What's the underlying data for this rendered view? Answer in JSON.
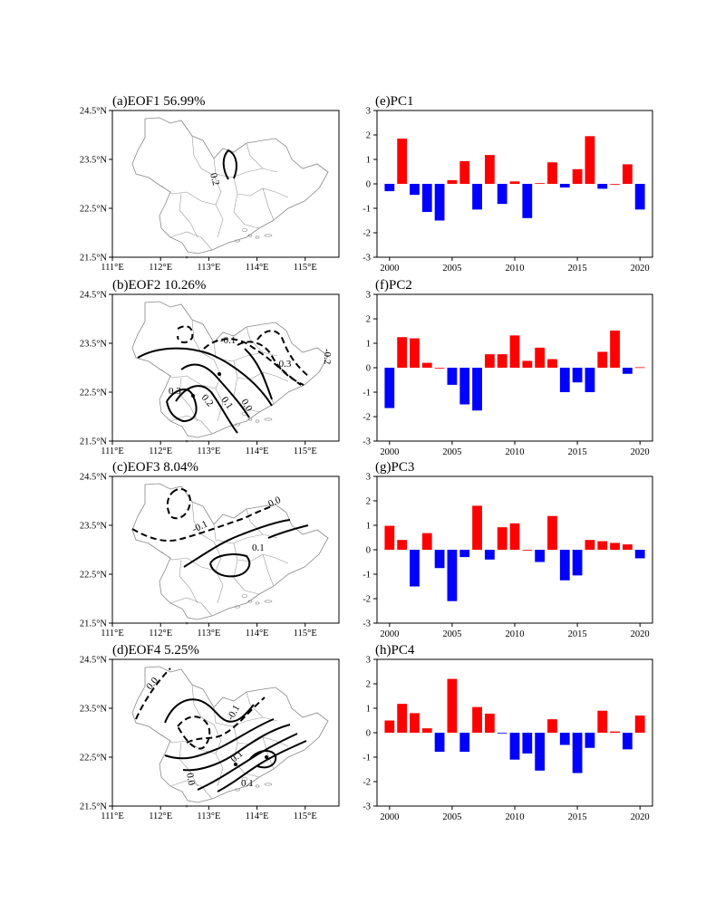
{
  "chart_data": [
    {
      "type": "contour-map",
      "title": "(a)EOF1  56.99%",
      "x_ticks": [
        "111°E",
        "112°E",
        "113°E",
        "114°E",
        "115°E"
      ],
      "y_ticks": [
        "24.5°N",
        "23.5°N",
        "22.5°N",
        "21.5°N"
      ],
      "xlim": [
        111,
        115.7
      ],
      "ylim": [
        21.5,
        24.5
      ],
      "contour_labels": [
        "0.2"
      ]
    },
    {
      "type": "contour-map",
      "title": "(b)EOF2  10.26%",
      "x_ticks": [
        "111°E",
        "112°E",
        "113°E",
        "114°E",
        "115°E"
      ],
      "y_ticks": [
        "24.5°N",
        "23.5°N",
        "22.5°N",
        "21.5°N"
      ],
      "xlim": [
        111,
        115.7
      ],
      "ylim": [
        21.5,
        24.5
      ],
      "contour_labels": [
        "-0.1",
        "-0.3",
        "-0.2",
        "0.3",
        "0.2",
        "0.1",
        "0.0"
      ]
    },
    {
      "type": "contour-map",
      "title": "(c)EOF3  8.04%",
      "x_ticks": [
        "111°E",
        "112°E",
        "113°E",
        "114°E",
        "115°E"
      ],
      "y_ticks": [
        "24.5°N",
        "23.5°N",
        "22.5°N",
        "21.5°N"
      ],
      "xlim": [
        111,
        115.7
      ],
      "ylim": [
        21.5,
        24.5
      ],
      "contour_labels": [
        "0.0",
        "-0.1",
        "0.1"
      ]
    },
    {
      "type": "contour-map",
      "title": "(d)EOF4  5.25%",
      "x_ticks": [
        "111°E",
        "112°E",
        "113°E",
        "114°E",
        "115°E"
      ],
      "y_ticks": [
        "24.5°N",
        "23.5°N",
        "22.5°N",
        "21.5°N"
      ],
      "xlim": [
        111,
        115.7
      ],
      "ylim": [
        21.5,
        24.5
      ],
      "contour_labels": [
        "0.0",
        "-0.1",
        "0.1",
        "0.0",
        "0.1"
      ]
    },
    {
      "type": "bar",
      "title": "(e)PC1",
      "x": [
        2000,
        2001,
        2002,
        2003,
        2004,
        2005,
        2006,
        2007,
        2008,
        2009,
        2010,
        2011,
        2012,
        2013,
        2014,
        2015,
        2016,
        2017,
        2018,
        2019,
        2020
      ],
      "values": [
        -0.3,
        1.85,
        -0.45,
        -1.15,
        -1.5,
        0.15,
        0.93,
        -1.05,
        1.18,
        -0.82,
        0.1,
        -1.4,
        0.03,
        0.88,
        -0.15,
        0.6,
        1.95,
        -0.2,
        0.0,
        0.8,
        -1.05
      ],
      "x_ticks": [
        2000,
        2005,
        2010,
        2015,
        2020
      ],
      "y_ticks": [
        3,
        2,
        1,
        0,
        -1,
        -2,
        -3
      ],
      "ylim": [
        -3,
        3
      ],
      "xlim": [
        1999,
        2021
      ],
      "colors": {
        "positive": "#ff0000",
        "negative": "#0000ff"
      }
    },
    {
      "type": "bar",
      "title": "(f)PC2",
      "x": [
        2000,
        2001,
        2002,
        2003,
        2004,
        2005,
        2006,
        2007,
        2008,
        2009,
        2010,
        2011,
        2012,
        2013,
        2014,
        2015,
        2016,
        2017,
        2018,
        2019,
        2020
      ],
      "values": [
        -1.65,
        1.25,
        1.2,
        0.2,
        0.0,
        -0.7,
        -1.5,
        -1.75,
        0.55,
        0.55,
        1.32,
        0.28,
        0.82,
        0.35,
        -1.0,
        -0.6,
        -1.0,
        0.65,
        1.52,
        -0.25,
        0.02
      ],
      "x_ticks": [
        2000,
        2005,
        2010,
        2015,
        2020
      ],
      "y_ticks": [
        3,
        2,
        1,
        0,
        -1,
        -2,
        -3
      ],
      "ylim": [
        -3,
        3
      ],
      "xlim": [
        1999,
        2021
      ],
      "colors": {
        "positive": "#ff0000",
        "negative": "#0000ff"
      }
    },
    {
      "type": "bar",
      "title": "(g)PC3",
      "x": [
        2000,
        2001,
        2002,
        2003,
        2004,
        2005,
        2006,
        2007,
        2008,
        2009,
        2010,
        2011,
        2012,
        2013,
        2014,
        2015,
        2016,
        2017,
        2018,
        2019,
        2020
      ],
      "values": [
        0.98,
        0.4,
        -1.5,
        0.68,
        -0.75,
        -2.1,
        -0.3,
        1.8,
        -0.4,
        0.92,
        1.08,
        0.0,
        -0.5,
        1.38,
        -1.25,
        -1.05,
        0.4,
        0.35,
        0.28,
        0.22,
        -0.35
      ],
      "x_ticks": [
        2000,
        2005,
        2010,
        2015,
        2020
      ],
      "y_ticks": [
        3,
        2,
        1,
        0,
        -1,
        -2,
        -3
      ],
      "ylim": [
        -3,
        3
      ],
      "xlim": [
        1999,
        2021
      ],
      "colors": {
        "positive": "#ff0000",
        "negative": "#0000ff"
      }
    },
    {
      "type": "bar",
      "title": "(h)PC4",
      "x": [
        2000,
        2001,
        2002,
        2003,
        2004,
        2005,
        2006,
        2007,
        2008,
        2009,
        2010,
        2011,
        2012,
        2013,
        2014,
        2015,
        2016,
        2017,
        2018,
        2019,
        2020
      ],
      "values": [
        0.5,
        1.18,
        0.8,
        0.18,
        -0.78,
        2.2,
        -0.78,
        1.05,
        0.78,
        -0.02,
        -1.1,
        -0.85,
        -1.55,
        0.55,
        -0.5,
        -1.65,
        -0.62,
        0.9,
        0.05,
        -0.68,
        0.7
      ],
      "x_ticks": [
        2000,
        2005,
        2010,
        2015,
        2020
      ],
      "y_ticks": [
        3,
        2,
        1,
        0,
        -1,
        -2,
        -3
      ],
      "ylim": [
        -3,
        3
      ],
      "xlim": [
        1999,
        2021
      ],
      "colors": {
        "positive": "#ff0000",
        "negative": "#0000ff"
      }
    }
  ]
}
